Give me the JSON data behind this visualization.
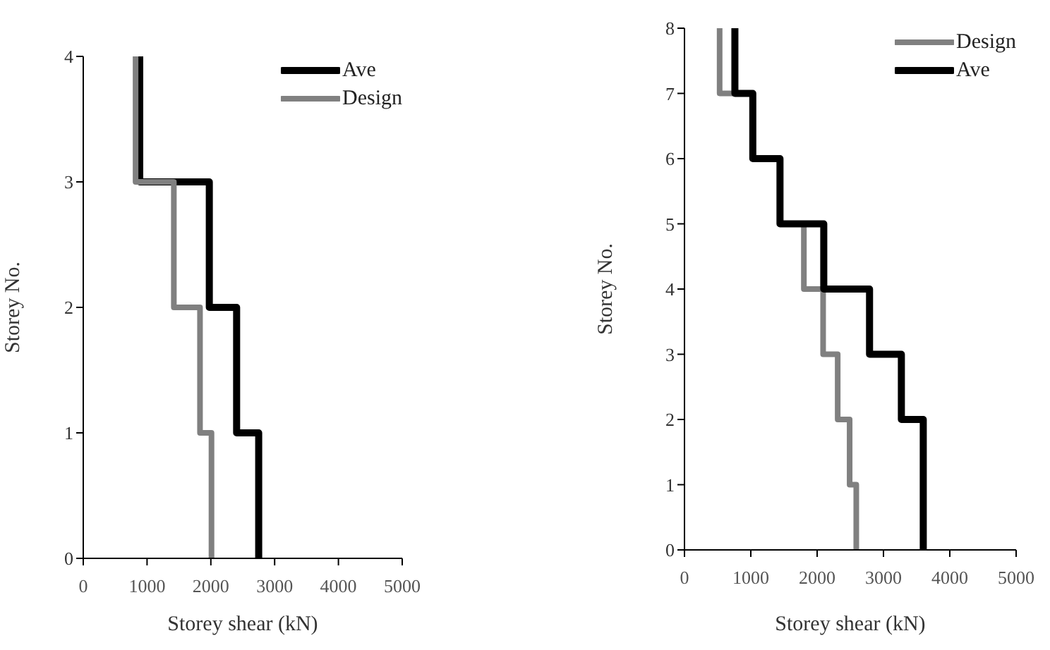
{
  "chart_data": [
    {
      "type": "line",
      "xlabel": "Storey shear (kN)",
      "ylabel": "Storey No.",
      "xlim": [
        0,
        5000
      ],
      "xticks": [
        0,
        1000,
        2000,
        3000,
        4000,
        5000
      ],
      "ylim": [
        0,
        4
      ],
      "yticks": [
        0,
        1,
        2,
        3,
        4
      ],
      "grid": false,
      "legend": "top right",
      "marker": "none",
      "line_style": "solid",
      "series": [
        {
          "name": "Ave",
          "color": "#000000",
          "x": [
            885,
            885,
            1976,
            1976,
            2404,
            2404,
            2750,
            2750
          ],
          "values": [
            4,
            3,
            3,
            2,
            2,
            1,
            1,
            0
          ]
        },
        {
          "name": "Design",
          "color": "#808080",
          "x": [
            820,
            820,
            1420,
            1420,
            1830,
            1830,
            2010,
            2010
          ],
          "values": [
            4,
            3,
            3,
            2,
            2,
            1,
            1,
            0
          ]
        }
      ]
    },
    {
      "type": "line",
      "xlabel": "Storey shear (kN)",
      "ylabel": "Storey No.",
      "xlim": [
        0,
        5000
      ],
      "xticks": [
        0,
        1000,
        2000,
        3000,
        4000,
        5000
      ],
      "ylim": [
        0,
        8
      ],
      "yticks": [
        0,
        1,
        2,
        3,
        4,
        5,
        6,
        7,
        8
      ],
      "grid": false,
      "legend": "top right",
      "marker": "none",
      "line_style": "solid",
      "series": [
        {
          "name": "Design",
          "color": "#808080",
          "x": [
            530,
            530,
            1030,
            1030,
            1440,
            1440,
            1800,
            1800,
            2090,
            2090,
            2310,
            2310,
            2490,
            2490,
            2590,
            2590
          ],
          "values": [
            8,
            7,
            7,
            6,
            6,
            5,
            5,
            4,
            4,
            3,
            3,
            2,
            2,
            1,
            1,
            0
          ]
        },
        {
          "name": "Ave",
          "color": "#000000",
          "x": [
            760,
            760,
            1030,
            1030,
            1440,
            1440,
            2100,
            2100,
            2790,
            2790,
            3270,
            3270,
            3600,
            3600,
            3600,
            3600
          ],
          "values": [
            8,
            7,
            7,
            6,
            6,
            5,
            5,
            4,
            4,
            3,
            3,
            2,
            2,
            1,
            1,
            0
          ]
        }
      ]
    }
  ]
}
